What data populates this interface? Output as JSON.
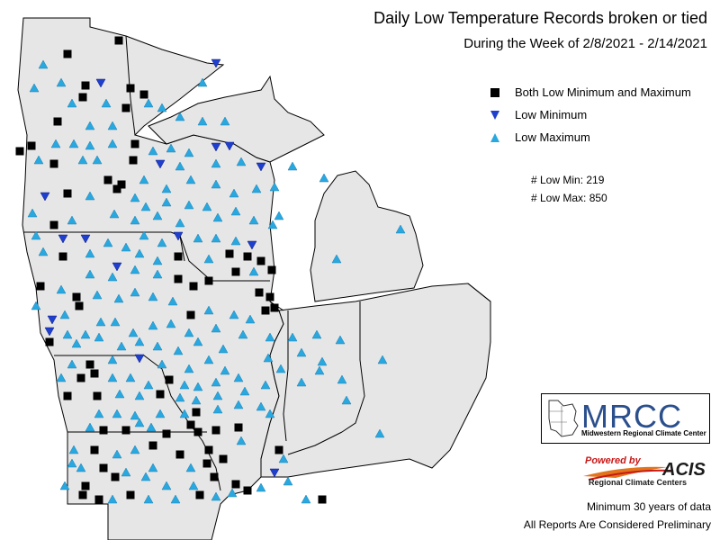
{
  "header": {
    "title": "Daily Low Temperature Records broken or tied",
    "subtitle": "During the Week of 2/8/2021 - 2/14/2021"
  },
  "legend": {
    "items": [
      {
        "label": "Both Low Minimum and Maximum",
        "symbol": "square",
        "color": "#000000"
      },
      {
        "label": "Low Minimum",
        "symbol": "triangle-down",
        "color": "#1f3fcf"
      },
      {
        "label": "Low Maximum",
        "symbol": "triangle-up",
        "color": "#29a8e0"
      }
    ]
  },
  "counts": {
    "low_min": "# Low Min: 219",
    "low_max": "# Low Max: 850"
  },
  "logo": {
    "name": "MRCC",
    "subtitle": "Midwestern Regional Climate Center"
  },
  "acis": {
    "powered_by": "Powered by",
    "name": "ACIS",
    "subtitle": "Regional Climate Centers"
  },
  "footer": {
    "line1": "Minimum 30 years of data",
    "line2": "All Reports Are Considered Preliminary"
  },
  "colors": {
    "land": "#e6e6e6",
    "water": "#ffffff",
    "border": "#000000",
    "both": "#000000",
    "low_min": "#1f3fcf",
    "low_max": "#29a8e0"
  }
}
